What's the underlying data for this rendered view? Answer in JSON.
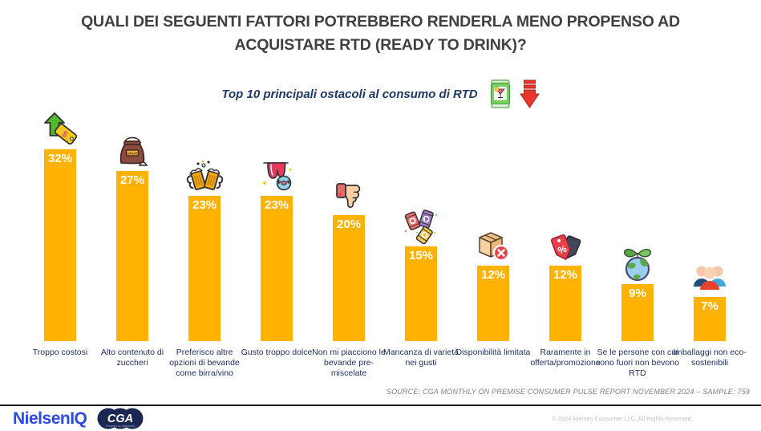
{
  "header": {
    "title_lines": [
      "QUALI DEI SEGUENTI FATTORI POTREBBERO RENDERLA MENO PROPENSO AD",
      "ACQUISTARE RTD (READY TO DRINK)?"
    ],
    "subtitle": "Top 10 principali ostacoli al consumo di RTD",
    "subtitle_icons": [
      "rtd-can-icon",
      "down-arrow-icon"
    ]
  },
  "chart_data": {
    "type": "bar",
    "title": "Top 10 principali ostacoli al consumo di RTD",
    "categories": [
      "Troppo costosi",
      "Alto contenuto di zuccheri",
      "Preferisco altre opzioni di bevande come birra/vino",
      "Gusto troppo dolce",
      "Non mi piacciono le bevande pre-miscelate",
      "Mancanza di varietà nei gusti",
      "Disponibilità limitata",
      "Raramente in offerta/promozione",
      "Se le persone con cui sono fuori non bevono RTD",
      "Imballaggi non eco-sostenibili"
    ],
    "values": [
      32,
      27,
      23,
      23,
      20,
      15,
      12,
      12,
      9,
      7
    ],
    "unit": "%",
    "bar_color": "#FFB300",
    "icons": [
      "price-increase-icon",
      "sugar-sack-icon",
      "beer-mugs-icon",
      "sweet-tongue-icon",
      "thumbs-down-icon",
      "flavor-packets-icon",
      "unavailable-box-icon",
      "discount-tags-icon",
      "eco-globe-icon",
      "people-group-icon"
    ],
    "xlabel": "",
    "ylabel": "",
    "ylim": [
      0,
      35
    ],
    "grid": false,
    "legend": false
  },
  "source": {
    "text": "SOURCE: CGA MONTHLY ON PREMISE CONSUMER PULSE REPORT NOVEMBER 2024  – SAMPLE: 759"
  },
  "footer": {
    "nielseniq_logo": "NielsenIQ",
    "cga_logo": "CGA",
    "cga_tagline": "Powered by NielsenIQ",
    "copyright": "© 2024 Nielsen Consumer LLC. All Rights Reserved."
  },
  "colors": {
    "bar": "#FFB300",
    "title_text": "#404040",
    "subtitle_text": "#1F3864",
    "category_text": "#1F3061",
    "source_text": "#7F7F7F",
    "nielseniq_blue": "#2B4BDF",
    "footer_line": "#0D0D1A"
  }
}
